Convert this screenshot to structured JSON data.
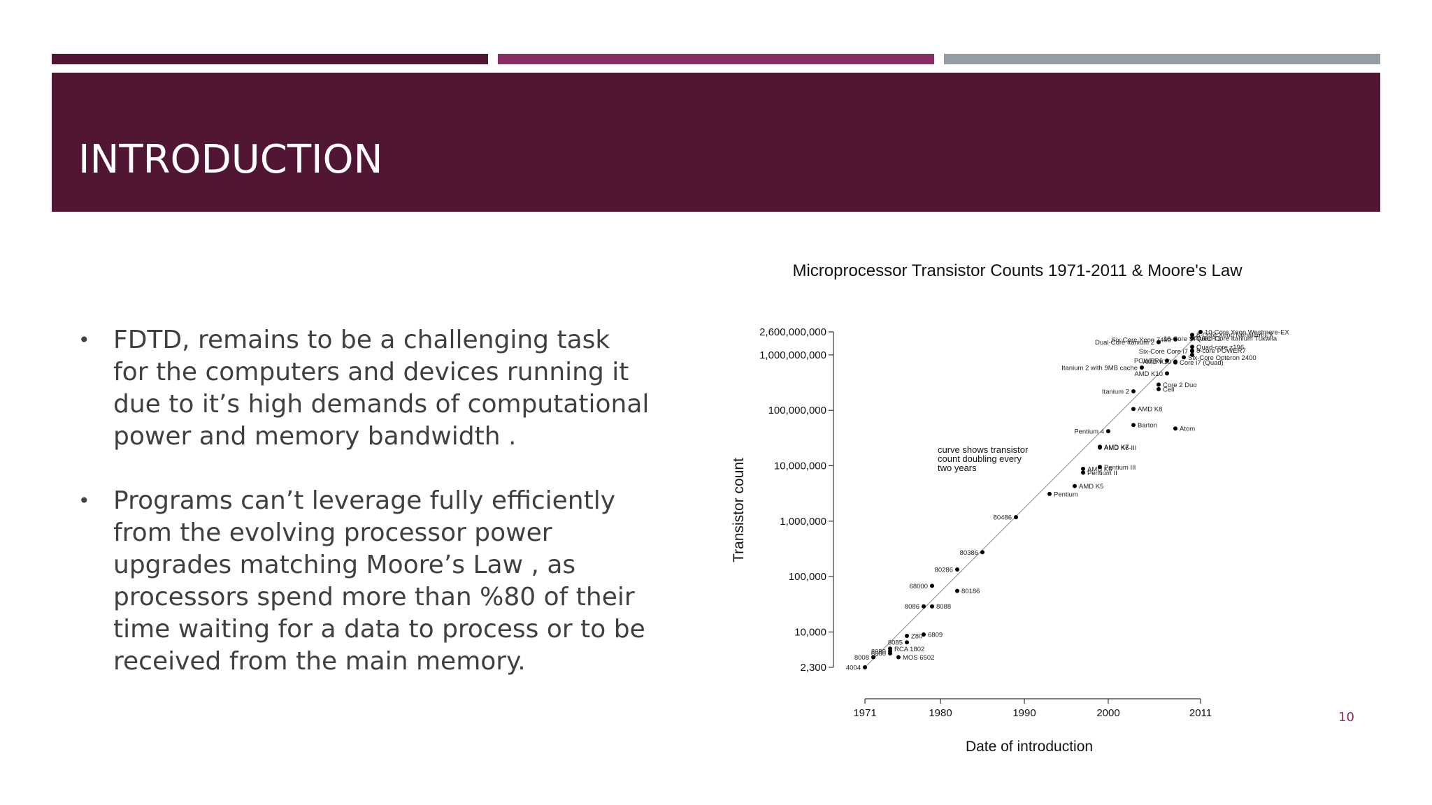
{
  "slide": {
    "title": "INTRODUCTION",
    "page_number": "10",
    "accent_colors": [
      "#511633",
      "#8b2d61",
      "#949da4"
    ],
    "bullets": [
      "FDTD,  remains to be a challenging task for the computers and devices running it due to it’s high demands of computational power and memory bandwidth .",
      "Programs can’t leverage fully efficiently from the evolving processor power upgrades matching Moore’s Law , as processors spend more than %80 of their time waiting for a data to process or to be received from the main memory."
    ]
  },
  "chart_data": {
    "type": "scatter",
    "title": "Microprocessor Transistor Counts 1971-2011 & Moore's Law",
    "xlabel": "Date of introduction",
    "ylabel": "Transistor count",
    "x_scale": "linear",
    "y_scale": "log",
    "xlim": [
      1971,
      2011
    ],
    "ylim": [
      2300,
      2600000000
    ],
    "x_ticks": [
      {
        "value": 1971,
        "label": "1971"
      },
      {
        "value": 1980,
        "label": "1980"
      },
      {
        "value": 1990,
        "label": "1990"
      },
      {
        "value": 2000,
        "label": "2000"
      },
      {
        "value": 2011,
        "label": "2011"
      }
    ],
    "y_ticks": [
      {
        "value": 2300,
        "label": "2,300"
      },
      {
        "value": 10000,
        "label": "10,000"
      },
      {
        "value": 100000,
        "label": "100,000"
      },
      {
        "value": 1000000,
        "label": "1,000,000"
      },
      {
        "value": 10000000,
        "label": "10,000,000"
      },
      {
        "value": 100000000,
        "label": "100,000,000"
      },
      {
        "value": 1000000000,
        "label": "1,000,000,000"
      },
      {
        "value": 2600000000,
        "label": "2,600,000,000"
      }
    ],
    "annotation": [
      "curve shows transistor",
      "count doubling every",
      "two years"
    ],
    "trend_line": {
      "label": "Moore's Law",
      "from": [
        1971,
        2300
      ],
      "to": [
        2011,
        2600000000
      ]
    },
    "points": [
      {
        "name": "4004",
        "year": 1971,
        "count": 2300,
        "side": "left"
      },
      {
        "name": "8008",
        "year": 1972,
        "count": 3500,
        "side": "left"
      },
      {
        "name": "8080",
        "year": 1974,
        "count": 4500,
        "side": "left"
      },
      {
        "name": "RCA 1802",
        "year": 1974,
        "count": 5000,
        "side": "right"
      },
      {
        "name": "MOS 6502",
        "year": 1975,
        "count": 3510,
        "side": "right"
      },
      {
        "name": "6800",
        "year": 1974,
        "count": 4100,
        "side": "left"
      },
      {
        "name": "8085",
        "year": 1976,
        "count": 6500,
        "side": "left"
      },
      {
        "name": "Z80",
        "year": 1976,
        "count": 8500,
        "side": "right"
      },
      {
        "name": "6809",
        "year": 1978,
        "count": 9000,
        "side": "right"
      },
      {
        "name": "8086",
        "year": 1978,
        "count": 29000,
        "side": "left"
      },
      {
        "name": "8088",
        "year": 1979,
        "count": 29000,
        "side": "right"
      },
      {
        "name": "68000",
        "year": 1979,
        "count": 68000,
        "side": "left"
      },
      {
        "name": "80186",
        "year": 1982,
        "count": 55000,
        "side": "right"
      },
      {
        "name": "80286",
        "year": 1982,
        "count": 134000,
        "side": "left"
      },
      {
        "name": "80386",
        "year": 1985,
        "count": 275000,
        "side": "left"
      },
      {
        "name": "80486",
        "year": 1989,
        "count": 1180000,
        "side": "left"
      },
      {
        "name": "Pentium",
        "year": 1993,
        "count": 3100000,
        "side": "right"
      },
      {
        "name": "AMD K5",
        "year": 1996,
        "count": 4300000,
        "side": "right"
      },
      {
        "name": "Pentium II",
        "year": 1997,
        "count": 7500000,
        "side": "right"
      },
      {
        "name": "AMD K6",
        "year": 1997,
        "count": 8800000,
        "side": "right"
      },
      {
        "name": "Pentium III",
        "year": 1999,
        "count": 9500000,
        "side": "right"
      },
      {
        "name": "AMD K6-III",
        "year": 1999,
        "count": 21300000,
        "side": "right"
      },
      {
        "name": "AMD K7",
        "year": 1999,
        "count": 22000000,
        "side": "right"
      },
      {
        "name": "Pentium 4",
        "year": 2000,
        "count": 42000000,
        "side": "left"
      },
      {
        "name": "Barton",
        "year": 2003,
        "count": 54300000,
        "side": "right"
      },
      {
        "name": "Atom",
        "year": 2008,
        "count": 47000000,
        "side": "right"
      },
      {
        "name": "AMD K8",
        "year": 2003,
        "count": 105900000,
        "side": "right"
      },
      {
        "name": "Itanium 2",
        "year": 2003,
        "count": 220000000,
        "side": "left"
      },
      {
        "name": "Cell",
        "year": 2006,
        "count": 241000000,
        "side": "right"
      },
      {
        "name": "Core 2 Duo",
        "year": 2006,
        "count": 291000000,
        "side": "right"
      },
      {
        "name": "AMD K10",
        "year": 2007,
        "count": 463000000,
        "side": "left"
      },
      {
        "name": "Itanium 2 with 9MB cache",
        "year": 2004,
        "count": 592000000,
        "side": "left"
      },
      {
        "name": "POWER6",
        "year": 2007,
        "count": 789000000,
        "side": "left"
      },
      {
        "name": "Core i7 (Quad)",
        "year": 2008,
        "count": 731000000,
        "side": "right"
      },
      {
        "name": "AMD K10",
        "year": 2008,
        "count": 758000000,
        "side": "left"
      },
      {
        "name": "Six-Core Opteron 2400",
        "year": 2009,
        "count": 904000000,
        "side": "right"
      },
      {
        "name": "Dual-Core Itanium 2",
        "year": 2006,
        "count": 1700000000,
        "side": "left"
      },
      {
        "name": "8-Core Xeon Nehalem-EX",
        "year": 2010,
        "count": 2300000000,
        "side": "right"
      },
      {
        "name": "Quad-Core Itanium Tukwila",
        "year": 2010,
        "count": 2000000000,
        "side": "right"
      },
      {
        "name": "Quad-core z196",
        "year": 2010,
        "count": 1400000000,
        "side": "right"
      },
      {
        "name": "8-core POWER7",
        "year": 2010,
        "count": 1200000000,
        "side": "right"
      },
      {
        "name": "Six-Core Xeon 7400",
        "year": 2008,
        "count": 1900000000,
        "side": "left"
      },
      {
        "name": "Six-Core Core i7",
        "year": 2010,
        "count": 1170000000,
        "side": "left"
      },
      {
        "name": "10-Core Xeon Westmere-EX",
        "year": 2011,
        "count": 2600000000,
        "side": "right"
      },
      {
        "name": "16-Core SPARC T3",
        "year": 2010,
        "count": 1000000000,
        "side": "above"
      }
    ]
  }
}
